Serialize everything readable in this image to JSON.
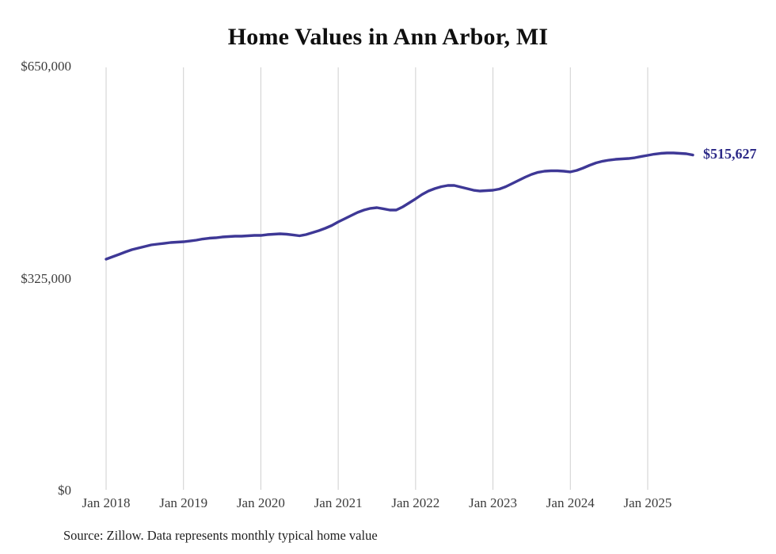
{
  "page": {
    "title": "Home Values in Ann Arbor, MI",
    "source_note": "Source: Zillow. Data represents monthly typical home value"
  },
  "chart_data": {
    "type": "line",
    "title": "Home Values in Ann Arbor, MI",
    "x": {
      "start": "2018-01",
      "end": "2025-08",
      "frequency": "monthly",
      "points": 92
    },
    "x_tick_labels": [
      "Jan 2018",
      "Jan 2019",
      "Jan 2020",
      "Jan 2021",
      "Jan 2022",
      "Jan 2023",
      "Jan 2024",
      "Jan 2025"
    ],
    "y_ticks": [
      {
        "label": "$650,000",
        "value": 650000
      },
      {
        "label": "$325,000",
        "value": 325000
      },
      {
        "label": "$0",
        "value": 0
      }
    ],
    "ylim": [
      0,
      650000
    ],
    "grid": "vertical-only",
    "legend": "none",
    "end_label": "$515,627",
    "final_value": 515627,
    "series": [
      {
        "name": "Typical home value",
        "values": [
          356000,
          359600,
          363300,
          367000,
          370600,
          373000,
          375400,
          377900,
          379100,
          380300,
          381500,
          382100,
          382700,
          383900,
          385200,
          387000,
          388200,
          388800,
          390000,
          390600,
          391200,
          391200,
          391800,
          392400,
          392400,
          393700,
          394300,
          394900,
          394300,
          393100,
          391800,
          393700,
          396700,
          399700,
          403400,
          407600,
          413100,
          418000,
          422800,
          427700,
          431300,
          433800,
          435000,
          433200,
          431300,
          431300,
          436200,
          442300,
          448400,
          455100,
          460500,
          464200,
          467200,
          469000,
          469000,
          466600,
          464100,
          461700,
          460500,
          461100,
          461700,
          463500,
          467200,
          472000,
          476900,
          481700,
          486000,
          489100,
          490900,
          491500,
          491500,
          490900,
          489700,
          492100,
          495700,
          500000,
          503600,
          506100,
          507900,
          509100,
          509700,
          510300,
          511500,
          513400,
          515200,
          517000,
          518200,
          518800,
          518800,
          518200,
          517600,
          515627
        ]
      }
    ],
    "colors": {
      "line": "#3e3896",
      "end_label": "#2e2b88",
      "grid": "#cfcfcf",
      "title": "#0f0f0f",
      "tick_text": "#3c3c3c",
      "source_text": "#1f1f1f",
      "background": "#ffffff"
    }
  }
}
